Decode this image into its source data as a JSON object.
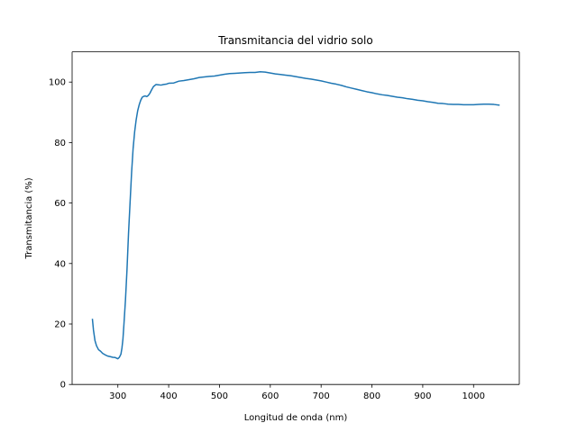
{
  "chart_data": {
    "type": "line",
    "title": "Transmitancia del vidrio solo",
    "xlabel": "Longitud de onda (nm)",
    "ylabel": "Transmitancia (%)",
    "xlim": [
      210,
      1090
    ],
    "ylim": [
      0,
      110
    ],
    "xticks": [
      300,
      400,
      500,
      600,
      700,
      800,
      900,
      1000
    ],
    "yticks": [
      0,
      20,
      40,
      60,
      80,
      100
    ],
    "grid": false,
    "series": [
      {
        "color": "#1f77b4",
        "x": [
          250,
          252,
          255,
          258,
          262,
          266,
          270,
          275,
          280,
          285,
          290,
          295,
          300,
          303,
          306,
          308,
          310,
          312,
          315,
          318,
          321,
          324,
          327,
          330,
          333,
          336,
          339,
          342,
          345,
          348,
          351,
          354,
          357,
          360,
          363,
          366,
          370,
          375,
          380,
          385,
          390,
          395,
          400,
          410,
          420,
          430,
          440,
          450,
          460,
          470,
          480,
          490,
          500,
          510,
          520,
          530,
          540,
          550,
          560,
          570,
          580,
          590,
          600,
          610,
          620,
          630,
          640,
          650,
          660,
          670,
          680,
          690,
          700,
          710,
          720,
          730,
          740,
          750,
          760,
          770,
          780,
          790,
          800,
          810,
          820,
          830,
          840,
          850,
          860,
          870,
          880,
          890,
          900,
          910,
          920,
          930,
          940,
          950,
          960,
          970,
          980,
          990,
          1000,
          1010,
          1020,
          1030,
          1040,
          1050
        ],
        "y": [
          21.5,
          18,
          14.5,
          12.8,
          11.5,
          11,
          10.3,
          9.8,
          9.4,
          9.2,
          9.0,
          8.9,
          8.5,
          9.0,
          10.0,
          12,
          15,
          20,
          28,
          38,
          50,
          60,
          70,
          78,
          83.5,
          87.5,
          90.5,
          92.5,
          94,
          95,
          95.3,
          95.4,
          95.2,
          95.6,
          96.3,
          97.3,
          98.5,
          99.2,
          99.1,
          99.0,
          99.2,
          99.3,
          99.6,
          99.7,
          100.3,
          100.5,
          100.8,
          101.1,
          101.5,
          101.7,
          101.9,
          102.0,
          102.3,
          102.6,
          102.8,
          102.9,
          103.0,
          103.1,
          103.2,
          103.2,
          103.4,
          103.3,
          103.0,
          102.7,
          102.5,
          102.3,
          102.1,
          101.8,
          101.5,
          101.2,
          101.0,
          100.7,
          100.4,
          100.0,
          99.6,
          99.3,
          98.9,
          98.4,
          98.0,
          97.6,
          97.2,
          96.8,
          96.5,
          96.1,
          95.8,
          95.6,
          95.3,
          95.0,
          94.8,
          94.5,
          94.3,
          94.0,
          93.8,
          93.5,
          93.3,
          93.0,
          92.9,
          92.7,
          92.6,
          92.6,
          92.5,
          92.5,
          92.5,
          92.6,
          92.7,
          92.7,
          92.6,
          92.4
        ]
      }
    ]
  }
}
